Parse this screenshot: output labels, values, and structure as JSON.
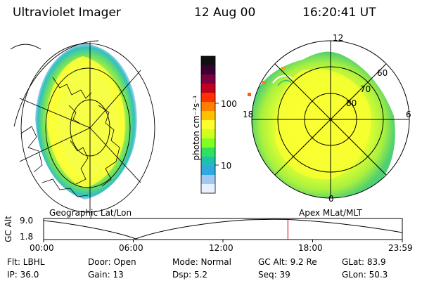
{
  "header": {
    "instrument": "Ultraviolet Imager",
    "date": "12 Aug 00",
    "time": "16:20:41 UT"
  },
  "colorbar": {
    "unit_label": "photon cm⁻²s⁻¹",
    "ticks": [
      "100",
      "10"
    ],
    "colors": [
      "#101010",
      "#3a0030",
      "#7a0040",
      "#c00020",
      "#ff3000",
      "#ff8000",
      "#ffc000",
      "#ffff30",
      "#d0ff20",
      "#80ff20",
      "#30e060",
      "#20c0b0",
      "#30a8e0",
      "#a0c8f0",
      "#e8f0ff"
    ]
  },
  "left_panel": {
    "label": "Geographic Lat/Lon"
  },
  "right_panel": {
    "label": "Apex MLat/MLT",
    "mlt_labels": {
      "top": "12",
      "left": "18",
      "right": "6",
      "bottom": "0"
    },
    "lat_labels": [
      "60",
      "70",
      "80"
    ]
  },
  "altitude_strip": {
    "ylabel": "GC Alt",
    "ytick_top": "9.0",
    "ytick_bottom": "1.8",
    "x_ticks": [
      "00:00",
      "06:00",
      "12:00",
      "18:00",
      "23:59"
    ],
    "marker_time_fraction": 0.681,
    "marker_color": "#cc0000"
  },
  "info": {
    "flt": "Flt: LBHL",
    "ip": "IP: 36.0",
    "door": "Door: Open",
    "gain": "Gain: 13",
    "mode": "Mode: Normal",
    "dsp": "Dsp:    5.2",
    "gcalt": "GC Alt: 9.2 Re",
    "seq": "Seq: 39",
    "glat": "GLat:   83.9",
    "glon": "GLon:   50.3"
  }
}
